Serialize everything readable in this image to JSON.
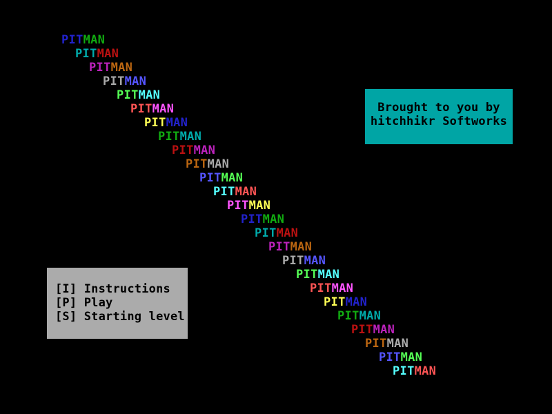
{
  "background_color": "#000000",
  "title_cascade": {
    "word_part1": "PIT",
    "word_part2": "MAN",
    "rows": [
      {
        "pit_color": "#2222CC",
        "man_color": "#11AA11"
      },
      {
        "pit_color": "#00AAAA",
        "man_color": "#BB1111"
      },
      {
        "pit_color": "#BB22BB",
        "man_color": "#BB6611"
      },
      {
        "pit_color": "#AAAAAA",
        "man_color": "#5555FF"
      },
      {
        "pit_color": "#55FF55",
        "man_color": "#55FFFF"
      },
      {
        "pit_color": "#FF5555",
        "man_color": "#FF55FF"
      },
      {
        "pit_color": "#FFFF55",
        "man_color": "#2222CC"
      },
      {
        "pit_color": "#11AA11",
        "man_color": "#00AAAA"
      },
      {
        "pit_color": "#BB1111",
        "man_color": "#BB22BB"
      },
      {
        "pit_color": "#BB6611",
        "man_color": "#AAAAAA"
      },
      {
        "pit_color": "#5555FF",
        "man_color": "#55FF55"
      },
      {
        "pit_color": "#55FFFF",
        "man_color": "#FF5555"
      },
      {
        "pit_color": "#FF55FF",
        "man_color": "#FFFF55"
      },
      {
        "pit_color": "#2222CC",
        "man_color": "#11AA11"
      },
      {
        "pit_color": "#00AAAA",
        "man_color": "#BB1111"
      },
      {
        "pit_color": "#BB22BB",
        "man_color": "#BB6611"
      },
      {
        "pit_color": "#AAAAAA",
        "man_color": "#5555FF"
      },
      {
        "pit_color": "#55FF55",
        "man_color": "#55FFFF"
      },
      {
        "pit_color": "#FF5555",
        "man_color": "#FF55FF"
      },
      {
        "pit_color": "#FFFF55",
        "man_color": "#2222CC"
      },
      {
        "pit_color": "#11AA11",
        "man_color": "#00AAAA"
      },
      {
        "pit_color": "#BB1111",
        "man_color": "#BB22BB"
      },
      {
        "pit_color": "#BB6611",
        "man_color": "#AAAAAA"
      },
      {
        "pit_color": "#5555FF",
        "man_color": "#55FF55"
      },
      {
        "pit_color": "#55FFFF",
        "man_color": "#FF5555"
      }
    ]
  },
  "credit_box": {
    "bg_color": "#00A5A5",
    "text_color": "#000000",
    "line1": "Brought to you by",
    "line2": "hitchhikr Softworks"
  },
  "menu_box": {
    "bg_color": "#ABABAB",
    "text_color": "#000000",
    "items": [
      {
        "label": "[I] Instructions"
      },
      {
        "label": "[P] Play"
      },
      {
        "label": "[S] Starting level"
      }
    ]
  }
}
